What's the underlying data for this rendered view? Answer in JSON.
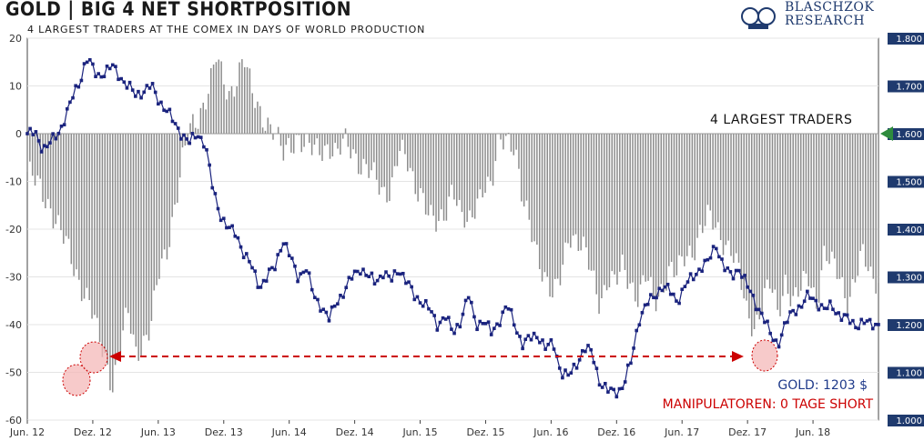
{
  "header": {
    "title": "GOLD | BIG 4 NET SHORTPOSITION",
    "subtitle": "4 LARGEST TRADERS AT THE COMEX IN DAYS OF WORLD PRODUCTION"
  },
  "logo": {
    "line1": "BLASCHZOK",
    "line2": "RESEARCH"
  },
  "annotations": {
    "gold": "GOLD: 1203 $",
    "manipulatoren": "MANIPULATOREN: 0 TAGE SHORT",
    "series_label": "4 LARGEST TRADERS"
  },
  "colors": {
    "bars": "#8c8c8c",
    "gold_line": "#1a237e",
    "arrow": "#cc0000",
    "circle_fill": "#f4b8b8",
    "marker": "#2e8b3e",
    "right_axis_bg": "#1f3a6e"
  },
  "chart_data": {
    "type": "bar",
    "title": "GOLD | BIG 4 NET SHORTPOSITION",
    "subtitle": "4 LARGEST TRADERS AT THE COMEX IN DAYS OF WORLD PRODUCTION",
    "x_tick_labels": [
      "Jun. 12",
      "Dez. 12",
      "Jun. 13",
      "Dez. 13",
      "Jun. 14",
      "Dez. 14",
      "Jun. 15",
      "Dez. 15",
      "Jun. 16",
      "Dez. 16",
      "Jun. 17",
      "Dez. 17",
      "Jun. 18"
    ],
    "left_axis": {
      "ylim": [
        -60,
        20
      ],
      "ticks": [
        20,
        10,
        0,
        -10,
        -20,
        -30,
        -40,
        -50,
        -60
      ]
    },
    "right_axis": {
      "ylim": [
        1000,
        1800
      ],
      "ticks": [
        "1.800",
        "1.700",
        "1.600",
        "1.500",
        "1.400",
        "1.300",
        "1.200",
        "1.100",
        "1.000"
      ]
    },
    "series": [
      {
        "name": "4 LARGEST TRADERS",
        "type": "bar",
        "axis": "left",
        "anchors": [
          [
            0,
            -8
          ],
          [
            3,
            -15
          ],
          [
            6,
            -28
          ],
          [
            8,
            -35
          ],
          [
            9,
            -42
          ],
          [
            10,
            -47
          ],
          [
            11,
            -52
          ],
          [
            12,
            -45
          ],
          [
            13,
            -38
          ],
          [
            14,
            -46
          ],
          [
            15,
            -43
          ],
          [
            16,
            -40
          ],
          [
            17,
            -30
          ],
          [
            18,
            -25
          ],
          [
            19,
            -15
          ],
          [
            20,
            -6
          ],
          [
            21,
            0
          ],
          [
            22,
            3
          ],
          [
            23,
            8
          ],
          [
            24,
            13
          ],
          [
            24.4,
            16
          ],
          [
            25,
            12
          ],
          [
            26,
            8
          ],
          [
            27,
            12
          ],
          [
            28,
            16
          ],
          [
            29,
            8
          ],
          [
            30,
            5
          ],
          [
            31,
            3
          ],
          [
            32,
            0
          ],
          [
            33,
            -5
          ],
          [
            34,
            -2
          ],
          [
            35,
            0
          ],
          [
            36,
            -3
          ],
          [
            37,
            -4
          ],
          [
            38,
            -3
          ],
          [
            39,
            -2
          ],
          [
            40,
            -5
          ],
          [
            41,
            -2
          ],
          [
            42,
            -3
          ],
          [
            43,
            -6
          ],
          [
            44,
            -8
          ],
          [
            45,
            -10
          ],
          [
            46,
            -12
          ],
          [
            47,
            -11
          ],
          [
            48,
            -4
          ],
          [
            49,
            -6
          ],
          [
            50,
            -10
          ],
          [
            51,
            -12
          ],
          [
            52,
            -18
          ],
          [
            53,
            -20
          ],
          [
            54,
            -16
          ],
          [
            55,
            -10
          ],
          [
            56,
            -18
          ],
          [
            57,
            -20
          ],
          [
            58,
            -14
          ],
          [
            59,
            -10
          ],
          [
            60,
            -12
          ],
          [
            61,
            -2
          ],
          [
            62,
            0
          ],
          [
            63,
            -2
          ],
          [
            64,
            -15
          ],
          [
            65,
            -20
          ],
          [
            66,
            -25
          ],
          [
            67,
            -30
          ],
          [
            68,
            -35
          ],
          [
            69,
            -30
          ],
          [
            70,
            -20
          ],
          [
            71,
            -22
          ],
          [
            72,
            -25
          ],
          [
            73,
            -30
          ],
          [
            74,
            -35
          ],
          [
            75,
            -30
          ],
          [
            76,
            -32
          ],
          [
            77,
            -28
          ],
          [
            78,
            -31
          ],
          [
            79,
            -34
          ],
          [
            80,
            -30
          ],
          [
            81,
            -36
          ],
          [
            82,
            -32
          ],
          [
            83,
            -28
          ],
          [
            84,
            -30
          ],
          [
            85,
            -26
          ],
          [
            86,
            -24
          ],
          [
            87,
            -20
          ],
          [
            88,
            -18
          ],
          [
            89,
            -20
          ],
          [
            90,
            -22
          ],
          [
            91,
            -24
          ],
          [
            92,
            -30
          ],
          [
            93,
            -38
          ],
          [
            94,
            -40
          ],
          [
            95,
            -35
          ],
          [
            96,
            -32
          ],
          [
            97,
            -38
          ],
          [
            98,
            -30
          ],
          [
            99,
            -35
          ],
          [
            100,
            -33
          ],
          [
            101,
            -30
          ],
          [
            102,
            -35
          ],
          [
            103,
            -25
          ],
          [
            104,
            -28
          ],
          [
            105,
            -30
          ],
          [
            106,
            -35
          ],
          [
            107,
            -30
          ],
          [
            108,
            -26
          ],
          [
            109,
            -30
          ],
          [
            110,
            -30
          ]
        ],
        "note_x": "x in years from Jun. 12 scaled 0..110 over chart width"
      },
      {
        "name": "GOLD",
        "type": "line",
        "axis": "right",
        "anchors": [
          [
            0,
            1600
          ],
          [
            1,
            1600
          ],
          [
            2,
            1570
          ],
          [
            3,
            1580
          ],
          [
            4,
            1600
          ],
          [
            5,
            1640
          ],
          [
            6,
            1680
          ],
          [
            7,
            1720
          ],
          [
            7.6,
            1760
          ],
          [
            8,
            1750
          ],
          [
            9,
            1720
          ],
          [
            10,
            1730
          ],
          [
            11,
            1740
          ],
          [
            12,
            1720
          ],
          [
            13,
            1700
          ],
          [
            14,
            1680
          ],
          [
            15,
            1690
          ],
          [
            16,
            1700
          ],
          [
            17,
            1670
          ],
          [
            18,
            1650
          ],
          [
            19,
            1620
          ],
          [
            20,
            1600
          ],
          [
            21,
            1580
          ],
          [
            22,
            1600
          ],
          [
            23,
            1580
          ],
          [
            24,
            1480
          ],
          [
            25,
            1430
          ],
          [
            26,
            1400
          ],
          [
            27,
            1390
          ],
          [
            28,
            1350
          ],
          [
            29,
            1320
          ],
          [
            30,
            1280
          ],
          [
            31,
            1300
          ],
          [
            32,
            1320
          ],
          [
            33,
            1380
          ],
          [
            34,
            1340
          ],
          [
            35,
            1300
          ],
          [
            36,
            1320
          ],
          [
            37,
            1260
          ],
          [
            38,
            1240
          ],
          [
            39,
            1210
          ],
          [
            40,
            1250
          ],
          [
            41,
            1270
          ],
          [
            42,
            1300
          ],
          [
            43,
            1320
          ],
          [
            44,
            1300
          ],
          [
            45,
            1290
          ],
          [
            46,
            1310
          ],
          [
            47,
            1290
          ],
          [
            48,
            1320
          ],
          [
            49,
            1290
          ],
          [
            50,
            1260
          ],
          [
            51,
            1250
          ],
          [
            52,
            1230
          ],
          [
            53,
            1200
          ],
          [
            54,
            1220
          ],
          [
            55,
            1180
          ],
          [
            56,
            1210
          ],
          [
            57,
            1260
          ],
          [
            58,
            1200
          ],
          [
            59,
            1210
          ],
          [
            60,
            1180
          ],
          [
            61,
            1210
          ],
          [
            62,
            1240
          ],
          [
            63,
            1200
          ],
          [
            64,
            1160
          ],
          [
            65,
            1170
          ],
          [
            66,
            1180
          ],
          [
            67,
            1150
          ],
          [
            68,
            1160
          ],
          [
            69,
            1100
          ],
          [
            70,
            1090
          ],
          [
            71,
            1120
          ],
          [
            72,
            1150
          ],
          [
            73,
            1140
          ],
          [
            74,
            1080
          ],
          [
            75,
            1060
          ],
          [
            76,
            1060
          ],
          [
            77,
            1070
          ],
          [
            78,
            1120
          ],
          [
            79,
            1210
          ],
          [
            80,
            1240
          ],
          [
            81,
            1260
          ],
          [
            82,
            1280
          ],
          [
            83,
            1270
          ],
          [
            84,
            1250
          ],
          [
            85,
            1280
          ],
          [
            86,
            1300
          ],
          [
            87,
            1320
          ],
          [
            88,
            1330
          ],
          [
            89,
            1370
          ],
          [
            90,
            1320
          ],
          [
            91,
            1300
          ],
          [
            92,
            1320
          ],
          [
            93,
            1280
          ],
          [
            94,
            1250
          ],
          [
            95,
            1220
          ],
          [
            96,
            1180
          ],
          [
            97,
            1160
          ],
          [
            98,
            1200
          ],
          [
            99,
            1230
          ],
          [
            100,
            1240
          ],
          [
            101,
            1260
          ],
          [
            102,
            1250
          ],
          [
            103,
            1230
          ],
          [
            104,
            1240
          ],
          [
            105,
            1220
          ],
          [
            106,
            1210
          ],
          [
            107,
            1200
          ],
          [
            108,
            1205
          ],
          [
            109,
            1200
          ],
          [
            110,
            1203
          ]
        ]
      }
    ],
    "grid": true
  }
}
